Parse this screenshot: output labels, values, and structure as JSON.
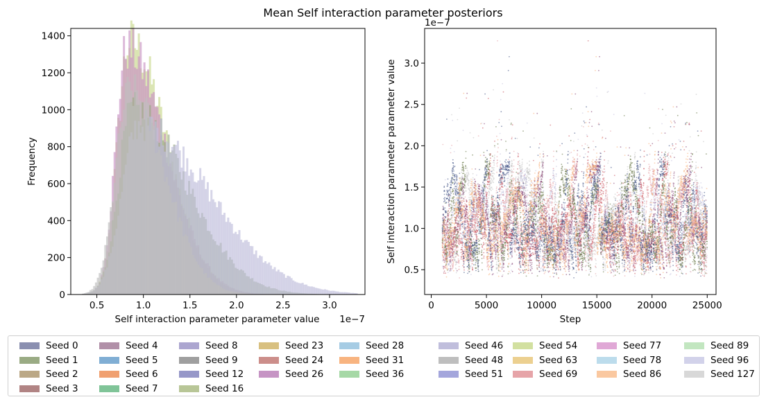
{
  "figure": {
    "suptitle": "Mean Self interaction parameter posteriors"
  },
  "colors": {
    "seed_palette": [
      "#8a8fb0",
      "#9aab84",
      "#bba886",
      "#b18484",
      "#b190a8",
      "#80aed4",
      "#f0a070",
      "#80c498",
      "#aca6d0",
      "#9f9f9f",
      "#9697c8",
      "#b8c697",
      "#d8c080",
      "#cc8e8a",
      "#c694c4",
      "#a6cce4",
      "#f8b480",
      "#a6d8a6",
      "#c0bedc",
      "#bebebe",
      "#a4a6dc",
      "#d2e0a0",
      "#ecd090",
      "#e6a4a8",
      "#e0a8d6",
      "#bcdcec",
      "#fac8a0",
      "#c2e6c0",
      "#d2d2ea",
      "#d8d8d8"
    ]
  },
  "chart_data": [
    {
      "type": "histogram",
      "title": "",
      "xlabel": "Self interaction parameter parameter value",
      "ylabel": "Frequency",
      "x_scale_label": "1e−7",
      "xlim": [
        0.22,
        3.38
      ],
      "ylim": [
        0,
        1440
      ],
      "xticks": [
        0.5,
        1.0,
        1.5,
        2.0,
        2.5,
        3.0
      ],
      "xtick_labels": [
        "0.5",
        "1.0",
        "1.5",
        "2.0",
        "2.5",
        "3.0"
      ],
      "yticks": [
        0,
        200,
        400,
        600,
        800,
        1000,
        1200,
        1400
      ],
      "ytick_labels": [
        "0",
        "200",
        "400",
        "600",
        "800",
        "1000",
        "1200",
        "1400"
      ],
      "grid": false,
      "profiles": [
        {
          "peak_x": 0.85,
          "peak_y": 1370,
          "sigma_left": 0.13,
          "sigma_right": 0.4,
          "color": "#c9d98f"
        },
        {
          "peak_x": 0.82,
          "peak_y": 1330,
          "sigma_left": 0.12,
          "sigma_right": 0.42,
          "color": "#c994c4"
        },
        {
          "peak_x": 0.88,
          "peak_y": 1000,
          "sigma_left": 0.15,
          "sigma_right": 0.58,
          "color": "#9aab84"
        },
        {
          "peak_x": 0.95,
          "peak_y": 920,
          "sigma_left": 0.18,
          "sigma_right": 0.75,
          "color": "#c0bedc"
        },
        {
          "peak_x": 0.85,
          "peak_y": 1100,
          "sigma_left": 0.15,
          "sigma_right": 0.38,
          "color": "#bebebe"
        }
      ]
    },
    {
      "type": "scatter",
      "title": "",
      "xlabel": "Step",
      "ylabel": "Self interaction parameter parameter value",
      "y_scale_label": "1e−7",
      "xlim": [
        -600,
        25800
      ],
      "ylim": [
        0.2,
        3.42
      ],
      "xticks": [
        0,
        5000,
        10000,
        15000,
        20000,
        25000
      ],
      "xtick_labels": [
        "0",
        "5000",
        "10000",
        "15000",
        "20000",
        "25000"
      ],
      "yticks": [
        0.5,
        1.0,
        1.5,
        2.0,
        2.5,
        3.0
      ],
      "ytick_labels": [
        "0.5",
        "1.0",
        "1.5",
        "2.0",
        "2.5",
        "3.0"
      ],
      "grid": false,
      "x_range": [
        1000,
        25000
      ],
      "band": {
        "low": 0.4,
        "high": 3.27
      },
      "trace_colors": [
        "#bebebe",
        "#c0bedc",
        "#cc5a64",
        "#8a4a7a",
        "#6a7a4a",
        "#e6a4a8",
        "#4a5a8a",
        "#f8b480"
      ]
    }
  ],
  "legend": {
    "placement": "bottom",
    "columns": [
      [
        "Seed 0",
        "Seed 1",
        "Seed 2",
        "Seed 3"
      ],
      [
        "Seed 4",
        "Seed 5",
        "Seed 6",
        "Seed 7"
      ],
      [
        "Seed 8",
        "Seed 9",
        "Seed 12",
        "Seed 16"
      ],
      [
        "Seed 23",
        "Seed 24",
        "Seed 26"
      ],
      [
        "Seed 28",
        "Seed 31",
        "Seed 36"
      ],
      [
        "Seed 46",
        "Seed 48",
        "Seed 51"
      ],
      [
        "Seed 54",
        "Seed 63",
        "Seed 69"
      ],
      [
        "Seed 77",
        "Seed 78",
        "Seed 86"
      ],
      [
        "Seed 89",
        "Seed 96",
        "Seed 127"
      ]
    ]
  }
}
